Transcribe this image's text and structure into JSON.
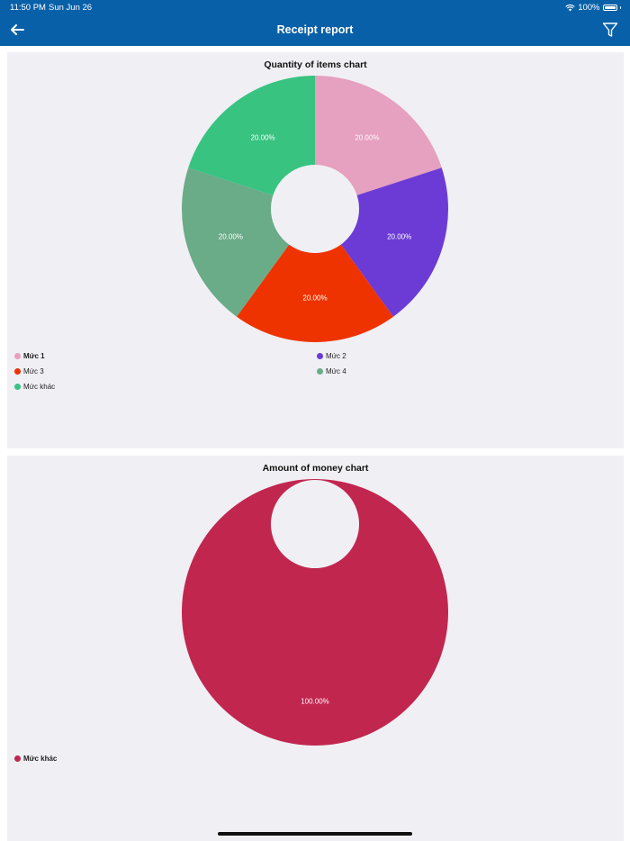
{
  "status_bar": {
    "time": "11:50 PM",
    "date": "Sun Jun 26",
    "battery": "100%"
  },
  "header": {
    "title": "Receipt report",
    "background": "#0860a8"
  },
  "icons": {
    "back": "arrow-left-icon",
    "filter": "filter-icon",
    "wifi": "wifi-icon",
    "battery": "battery-icon"
  },
  "chart_data": [
    {
      "type": "pie",
      "title": "Quantity of items chart",
      "donut": true,
      "legend": "bottom",
      "categories": [
        "Mức 1",
        "Mức 2",
        "Mức 3",
        "Mức 4",
        "Mức khác"
      ],
      "values": [
        20,
        20,
        20,
        20,
        20
      ],
      "labels": [
        "20.00%",
        "20.00%",
        "20.00%",
        "20.00%",
        "20.00%"
      ],
      "colors": [
        "#e6a0c0",
        "#6c3bd5",
        "#ee3300",
        "#6aab88",
        "#38c381"
      ],
      "legend_bold": [
        true,
        false,
        false,
        false,
        false
      ]
    },
    {
      "type": "pie",
      "title": "Amount of money chart",
      "donut": true,
      "legend": "bottom",
      "categories": [
        "Mức khác"
      ],
      "values": [
        100
      ],
      "labels": [
        "100.00%"
      ],
      "colors": [
        "#c1264f"
      ],
      "legend_bold": [
        true
      ]
    }
  ]
}
